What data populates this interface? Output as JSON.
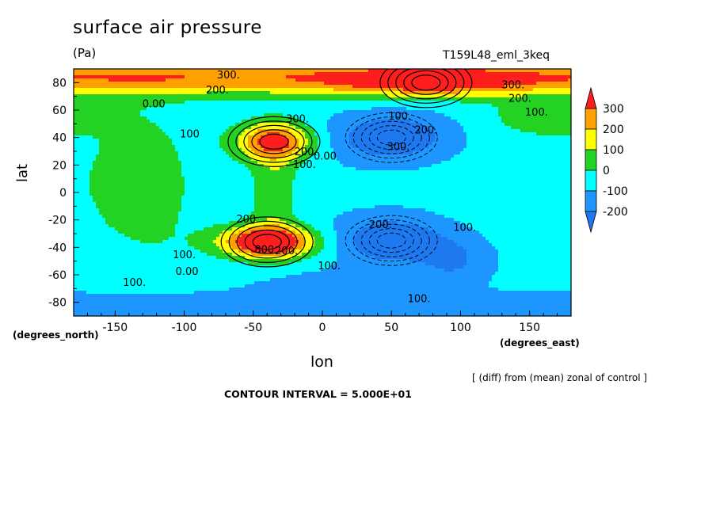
{
  "chart_data": {
    "type": "heatmap",
    "title": "surface air pressure",
    "units": "(Pa)",
    "run_id": "T159L48_eml_3keq",
    "xlabel": "lon",
    "ylabel": "lat",
    "x_units": "(degrees_east)",
    "y_units": "(degrees_north)",
    "xlim": [
      -180,
      180
    ],
    "ylim": [
      -90,
      90
    ],
    "x_ticks": [
      "-150",
      "-100",
      "-50",
      "0",
      "50",
      "100",
      "150"
    ],
    "y_ticks": [
      "80",
      "60",
      "40",
      "20",
      "0",
      "-20",
      "-40",
      "-60",
      "-80"
    ],
    "note": "[ (diff) from (mean) zonal of control ]",
    "contour_interval": "CONTOUR INTERVAL = 5.000E+01",
    "colorbar": {
      "labels": [
        "300",
        "200",
        "100",
        "0",
        "-100",
        "-200"
      ],
      "bands": [
        {
          "range": [
            -300,
            -200
          ],
          "color": "#1e78f0"
        },
        {
          "range": [
            -200,
            -100
          ],
          "color": "#1e96ff"
        },
        {
          "range": [
            -100,
            0
          ],
          "color": "#00ffff"
        },
        {
          "range": [
            0,
            100
          ],
          "color": "#24d224"
        },
        {
          "range": [
            100,
            200
          ],
          "color": "#ffff00"
        },
        {
          "range": [
            200,
            300
          ],
          "color": "#ff9f00"
        },
        {
          "range": [
            300,
            400
          ],
          "color": "#ff1e1e"
        }
      ]
    },
    "contour_labels": [
      {
        "text": "300.",
        "lon": -68,
        "lat": 83
      },
      {
        "text": "200.",
        "lon": -76,
        "lat": 72
      },
      {
        "text": "0.00",
        "lon": -122,
        "lat": 62
      },
      {
        "text": "300.",
        "lon": -18,
        "lat": 51
      },
      {
        "text": "100",
        "lon": -96,
        "lat": 40
      },
      {
        "text": "200.",
        "lon": -12,
        "lat": 27
      },
      {
        "text": "100.",
        "lon": -13,
        "lat": 18
      },
      {
        "text": "0.00",
        "lon": 2,
        "lat": 24
      },
      {
        "text": "100.",
        "lon": 56,
        "lat": 53
      },
      {
        "text": "200.",
        "lon": 75,
        "lat": 43
      },
      {
        "text": "300.",
        "lon": 55,
        "lat": 31
      },
      {
        "text": "300.",
        "lon": 138,
        "lat": 76
      },
      {
        "text": "200.",
        "lon": 143,
        "lat": 66
      },
      {
        "text": "100.",
        "lon": 155,
        "lat": 56
      },
      {
        "text": "200.",
        "lon": -54,
        "lat": -22
      },
      {
        "text": "200.",
        "lon": 42,
        "lat": -26
      },
      {
        "text": "100.",
        "lon": 103,
        "lat": -28
      },
      {
        "text": "100.",
        "lon": -100,
        "lat": -48
      },
      {
        "text": "0.00",
        "lon": -98,
        "lat": -60
      },
      {
        "text": "800",
        "lon": -42,
        "lat": -44
      },
      {
        "text": "200.",
        "lon": -26,
        "lat": -45
      },
      {
        "text": "100.",
        "lon": 5,
        "lat": -56
      },
      {
        "text": "100.",
        "lon": -136,
        "lat": -68
      },
      {
        "text": "100.",
        "lon": 70,
        "lat": -80
      }
    ],
    "features": [
      {
        "kind": "high",
        "lon": -35,
        "lat": 37,
        "peak": 400
      },
      {
        "kind": "high",
        "lon": -40,
        "lat": -36,
        "peak": 550
      },
      {
        "kind": "high",
        "lon": 75,
        "lat": 80,
        "peak": 380
      },
      {
        "kind": "low",
        "lon": 50,
        "lat": 40,
        "peak": -270
      },
      {
        "kind": "low",
        "lon": 50,
        "lat": -35,
        "peak": -260
      }
    ]
  }
}
